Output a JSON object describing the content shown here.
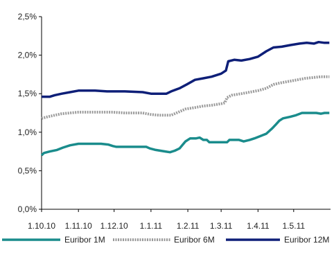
{
  "chart_data": {
    "type": "line",
    "title": "",
    "xlabel": "",
    "ylabel": "",
    "ylim": [
      0,
      2.5
    ],
    "xlim": [
      "2010-10-01",
      "2011-05-31"
    ],
    "y_ticks": [
      {
        "value": 0.0,
        "label": "0,0%"
      },
      {
        "value": 0.5,
        "label": "0,5%"
      },
      {
        "value": 1.0,
        "label": "1,0%"
      },
      {
        "value": 1.5,
        "label": "1,5%"
      },
      {
        "value": 2.0,
        "label": "2,0%"
      },
      {
        "value": 2.5,
        "label": "2,5%"
      }
    ],
    "x_ticks": [
      {
        "value": "2010-10-01",
        "label": "1.10.10"
      },
      {
        "value": "2010-11-01",
        "label": "1.11.10"
      },
      {
        "value": "2010-12-01",
        "label": "1.12.10"
      },
      {
        "value": "2011-01-01",
        "label": "1.1.11"
      },
      {
        "value": "2011-02-01",
        "label": "1.2.11"
      },
      {
        "value": "2011-03-01",
        "label": "1.3.11"
      },
      {
        "value": "2011-04-01",
        "label": "1.4.11"
      },
      {
        "value": "2011-05-01",
        "label": "1.5.11"
      }
    ],
    "grid": false,
    "legend_position": "bottom",
    "series": [
      {
        "name": "Euribor 1M",
        "color": "#1a8c8c",
        "style": "solid",
        "points": [
          [
            "2010-10-01",
            0.7
          ],
          [
            "2010-10-03",
            0.73
          ],
          [
            "2010-10-08",
            0.75
          ],
          [
            "2010-10-14",
            0.77
          ],
          [
            "2010-10-19",
            0.8
          ],
          [
            "2010-10-25",
            0.83
          ],
          [
            "2010-11-01",
            0.85
          ],
          [
            "2010-11-10",
            0.85
          ],
          [
            "2010-11-20",
            0.85
          ],
          [
            "2010-11-26",
            0.84
          ],
          [
            "2010-11-30",
            0.82
          ],
          [
            "2010-12-03",
            0.81
          ],
          [
            "2010-12-10",
            0.81
          ],
          [
            "2010-12-20",
            0.81
          ],
          [
            "2010-12-28",
            0.81
          ],
          [
            "2010-12-31",
            0.79
          ],
          [
            "2011-01-05",
            0.77
          ],
          [
            "2011-01-13",
            0.75
          ],
          [
            "2011-01-17",
            0.74
          ],
          [
            "2011-01-21",
            0.76
          ],
          [
            "2011-01-25",
            0.79
          ],
          [
            "2011-01-30",
            0.88
          ],
          [
            "2011-02-03",
            0.92
          ],
          [
            "2011-02-08",
            0.92
          ],
          [
            "2011-02-11",
            0.93
          ],
          [
            "2011-02-14",
            0.9
          ],
          [
            "2011-02-17",
            0.9
          ],
          [
            "2011-02-19",
            0.87
          ],
          [
            "2011-03-01",
            0.87
          ],
          [
            "2011-03-06",
            0.87
          ],
          [
            "2011-03-08",
            0.9
          ],
          [
            "2011-03-16",
            0.9
          ],
          [
            "2011-03-20",
            0.88
          ],
          [
            "2011-03-25",
            0.9
          ],
          [
            "2011-03-29",
            0.92
          ],
          [
            "2011-04-03",
            0.95
          ],
          [
            "2011-04-08",
            0.98
          ],
          [
            "2011-04-13",
            1.05
          ],
          [
            "2011-04-16",
            1.1
          ],
          [
            "2011-04-19",
            1.15
          ],
          [
            "2011-04-22",
            1.18
          ],
          [
            "2011-04-28",
            1.2
          ],
          [
            "2011-05-03",
            1.22
          ],
          [
            "2011-05-08",
            1.25
          ],
          [
            "2011-05-20",
            1.25
          ],
          [
            "2011-05-24",
            1.24
          ],
          [
            "2011-05-27",
            1.25
          ],
          [
            "2011-05-31",
            1.25
          ]
        ]
      },
      {
        "name": "Euribor 6M",
        "color": "#9a9a9a",
        "style": "dotted",
        "points": [
          [
            "2010-10-01",
            1.18
          ],
          [
            "2010-10-06",
            1.2
          ],
          [
            "2010-10-12",
            1.22
          ],
          [
            "2010-10-18",
            1.24
          ],
          [
            "2010-10-25",
            1.25
          ],
          [
            "2010-11-01",
            1.26
          ],
          [
            "2010-11-15",
            1.26
          ],
          [
            "2010-11-30",
            1.26
          ],
          [
            "2010-12-10",
            1.25
          ],
          [
            "2010-12-25",
            1.25
          ],
          [
            "2011-01-01",
            1.23
          ],
          [
            "2011-01-08",
            1.22
          ],
          [
            "2011-01-18",
            1.22
          ],
          [
            "2011-01-24",
            1.26
          ],
          [
            "2011-01-30",
            1.3
          ],
          [
            "2011-02-07",
            1.32
          ],
          [
            "2011-02-14",
            1.34
          ],
          [
            "2011-02-21",
            1.35
          ],
          [
            "2011-03-01",
            1.37
          ],
          [
            "2011-03-04",
            1.38
          ],
          [
            "2011-03-06",
            1.45
          ],
          [
            "2011-03-10",
            1.48
          ],
          [
            "2011-03-18",
            1.5
          ],
          [
            "2011-03-25",
            1.52
          ],
          [
            "2011-04-01",
            1.54
          ],
          [
            "2011-04-08",
            1.57
          ],
          [
            "2011-04-14",
            1.62
          ],
          [
            "2011-04-20",
            1.64
          ],
          [
            "2011-04-27",
            1.66
          ],
          [
            "2011-05-04",
            1.68
          ],
          [
            "2011-05-11",
            1.7
          ],
          [
            "2011-05-18",
            1.71
          ],
          [
            "2011-05-24",
            1.72
          ],
          [
            "2011-05-31",
            1.72
          ]
        ]
      },
      {
        "name": "Euribor 12M",
        "color": "#0e1f78",
        "style": "solid",
        "points": [
          [
            "2010-10-01",
            1.46
          ],
          [
            "2010-10-08",
            1.46
          ],
          [
            "2010-10-12",
            1.48
          ],
          [
            "2010-10-18",
            1.5
          ],
          [
            "2010-10-25",
            1.52
          ],
          [
            "2010-11-01",
            1.54
          ],
          [
            "2010-11-15",
            1.54
          ],
          [
            "2010-11-25",
            1.53
          ],
          [
            "2010-12-10",
            1.53
          ],
          [
            "2010-12-25",
            1.52
          ],
          [
            "2011-01-01",
            1.5
          ],
          [
            "2011-01-14",
            1.5
          ],
          [
            "2011-01-18",
            1.53
          ],
          [
            "2011-01-25",
            1.57
          ],
          [
            "2011-01-31",
            1.62
          ],
          [
            "2011-02-07",
            1.68
          ],
          [
            "2011-02-14",
            1.7
          ],
          [
            "2011-02-21",
            1.72
          ],
          [
            "2011-03-01",
            1.76
          ],
          [
            "2011-03-05",
            1.8
          ],
          [
            "2011-03-07",
            1.92
          ],
          [
            "2011-03-12",
            1.94
          ],
          [
            "2011-03-18",
            1.93
          ],
          [
            "2011-03-25",
            1.95
          ],
          [
            "2011-04-01",
            1.98
          ],
          [
            "2011-04-08",
            2.05
          ],
          [
            "2011-04-14",
            2.1
          ],
          [
            "2011-04-21",
            2.11
          ],
          [
            "2011-04-28",
            2.13
          ],
          [
            "2011-05-06",
            2.15
          ],
          [
            "2011-05-12",
            2.16
          ],
          [
            "2011-05-18",
            2.15
          ],
          [
            "2011-05-22",
            2.17
          ],
          [
            "2011-05-27",
            2.16
          ],
          [
            "2011-05-31",
            2.16
          ]
        ]
      }
    ]
  }
}
